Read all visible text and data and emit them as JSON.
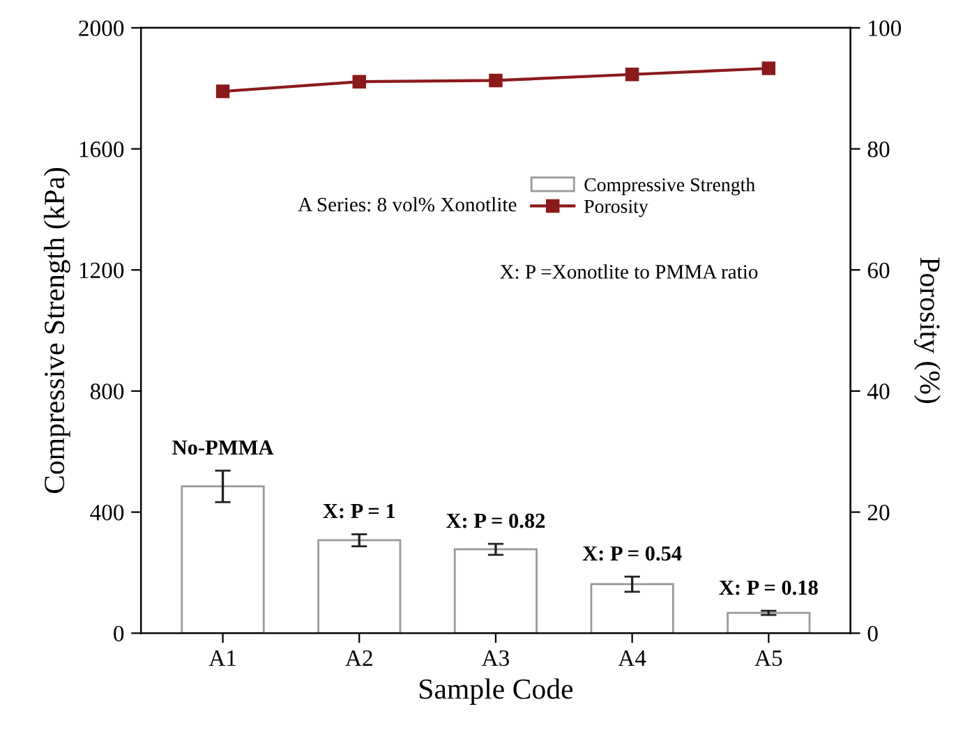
{
  "chart_data": {
    "type": "bar",
    "xlabel": "Sample Code",
    "ylabel": "Compressive Strength (kPa)",
    "y2label": "Porosity (%)",
    "categories": [
      "A1",
      "A2",
      "A3",
      "A4",
      "A5"
    ],
    "series": [
      {
        "name": "Compressive Strength",
        "color": "#ffffff",
        "values": [
          485,
          307,
          277,
          162,
          67
        ],
        "errors": [
          52,
          20,
          18,
          25,
          7
        ]
      },
      {
        "name": "Porosity",
        "type": "line",
        "axis": "y2",
        "color": "#8b1a1a",
        "marker": "square",
        "values": [
          89.5,
          91.1,
          91.3,
          92.3,
          93.3
        ]
      }
    ],
    "ylim": [
      0,
      2000
    ],
    "yticks": [
      0,
      400,
      800,
      1200,
      1600,
      2000
    ],
    "y2lim": [
      0,
      100
    ],
    "y2ticks": [
      0,
      20,
      40,
      60,
      80,
      100
    ],
    "legend": "top right",
    "grid": false,
    "annotations": [
      "A Series: 8 vol% Xonotlite",
      "X: P =Xonotlite to PMMA ratio",
      "No-PMMA",
      "X: P = 1",
      "X: P = 0.82",
      "X: P = 0.54",
      "X: P = 0.18"
    ]
  }
}
